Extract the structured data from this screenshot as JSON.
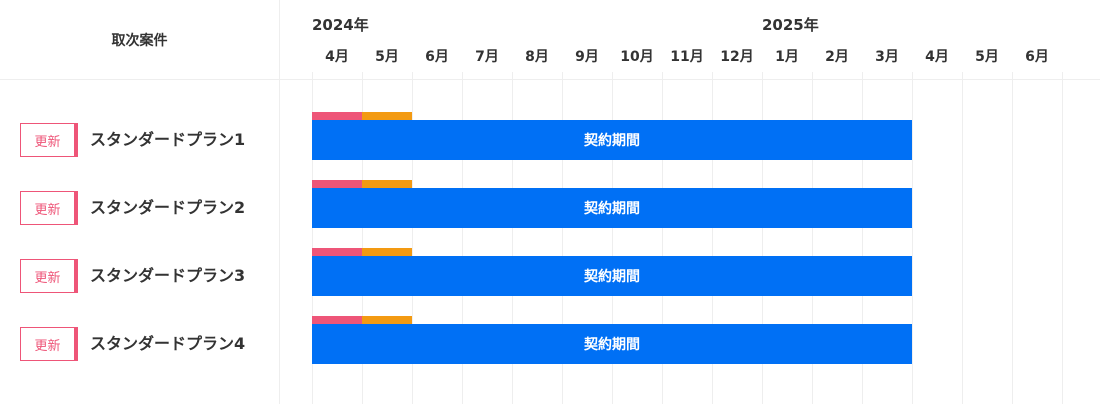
{
  "header": {
    "left_title": "取次案件",
    "years": [
      {
        "label": "2024年",
        "month_index": 0
      },
      {
        "label": "2025年",
        "month_index": 9
      }
    ],
    "months": [
      "4月",
      "5月",
      "6月",
      "7月",
      "8月",
      "9月",
      "10月",
      "11月",
      "12月",
      "1月",
      "2月",
      "3月",
      "4月",
      "5月",
      "6月"
    ]
  },
  "rows": [
    {
      "badge": "更新",
      "name": "スタンダードプラン1",
      "bar_label": "契約期間"
    },
    {
      "badge": "更新",
      "name": "スタンダードプラン2",
      "bar_label": "契約期間"
    },
    {
      "badge": "更新",
      "name": "スタンダードプラン3",
      "bar_label": "契約期間"
    },
    {
      "badge": "更新",
      "name": "スタンダードプラン4",
      "bar_label": "契約期間"
    }
  ],
  "colors": {
    "badge": "#ee5578",
    "strip1": "#ee5578",
    "strip2": "#f39a12",
    "bar": "#0070f5"
  }
}
